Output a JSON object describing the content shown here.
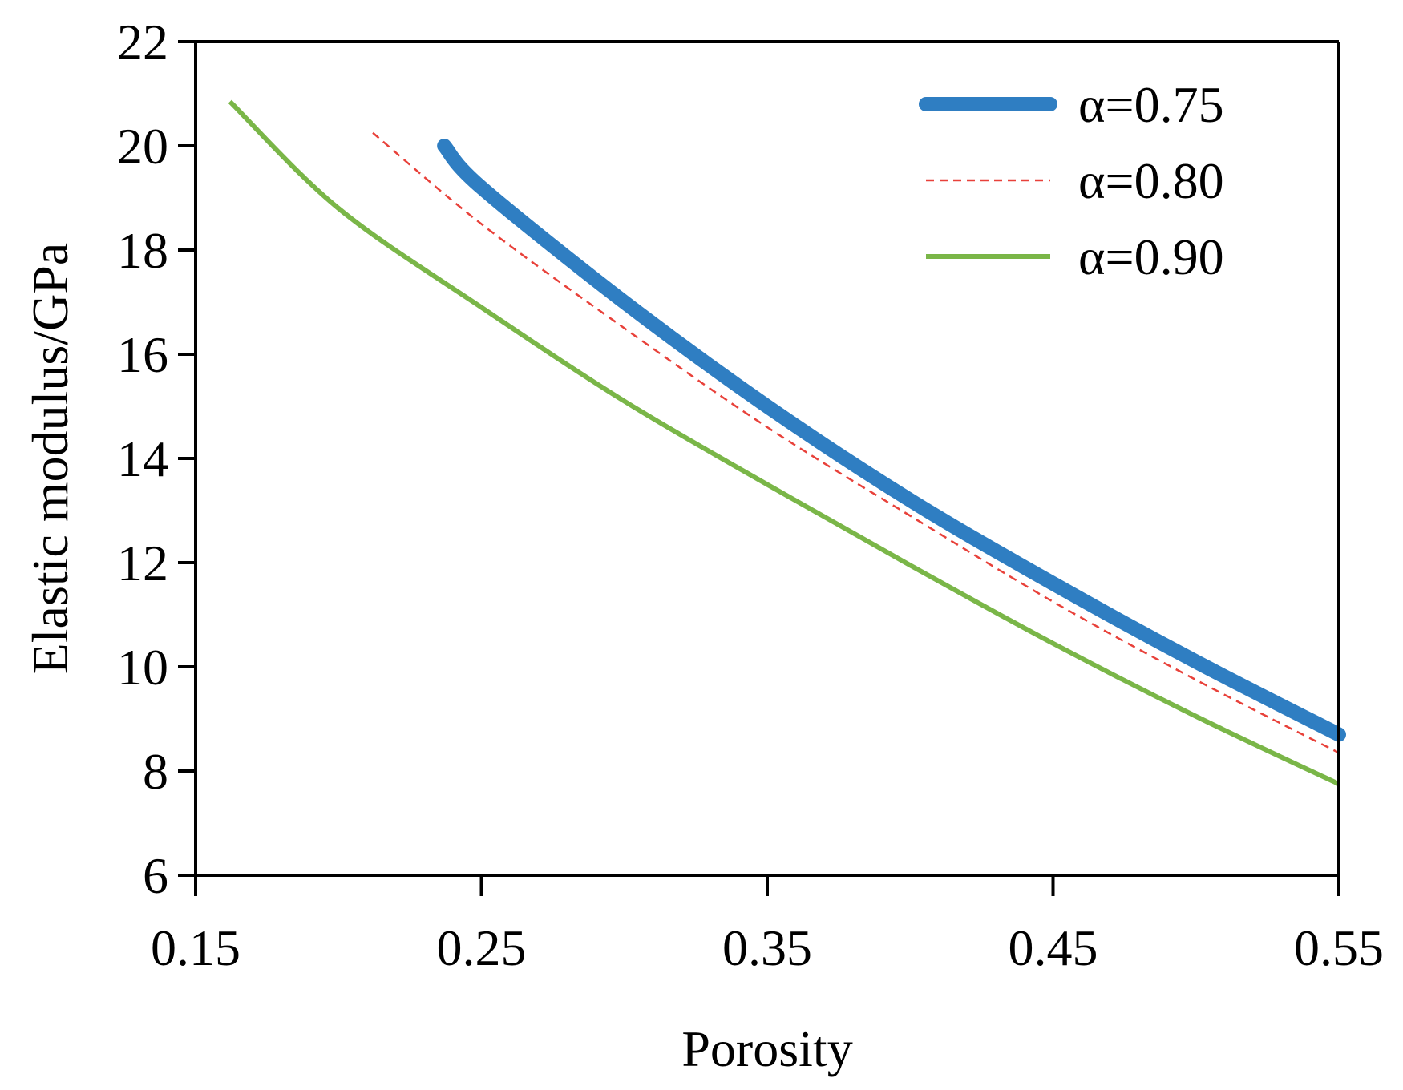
{
  "chart_data": {
    "type": "line",
    "title": "",
    "xlabel": "Porosity",
    "ylabel": "Elastic modulus/GPa",
    "xlim": [
      0.15,
      0.55
    ],
    "ylim": [
      6,
      22
    ],
    "xticks": [
      0.15,
      0.25,
      0.35,
      0.45,
      0.55
    ],
    "xtick_labels": [
      "0.15",
      "0.25",
      "0.35",
      "0.45",
      "0.55"
    ],
    "yticks": [
      6,
      8,
      10,
      12,
      14,
      16,
      18,
      20,
      22
    ],
    "ytick_labels": [
      "6",
      "8",
      "10",
      "12",
      "14",
      "16",
      "18",
      "20",
      "22"
    ],
    "grid": false,
    "legend_position": "top-right",
    "series": [
      {
        "name": "α=0.75",
        "color": "#2f7ec2",
        "style": "thick-solid",
        "x": [
          0.237,
          0.25,
          0.3,
          0.35,
          0.4,
          0.45,
          0.5,
          0.55
        ],
        "y": [
          20.0,
          19.2,
          17.0,
          15.0,
          13.2,
          11.6,
          10.1,
          8.7
        ]
      },
      {
        "name": "α=0.80",
        "color": "#e8413a",
        "style": "dashed",
        "x": [
          0.212,
          0.25,
          0.3,
          0.35,
          0.4,
          0.45,
          0.5,
          0.55
        ],
        "y": [
          20.25,
          18.5,
          16.5,
          14.6,
          12.9,
          11.25,
          9.75,
          8.35
        ]
      },
      {
        "name": "α=0.90",
        "color": "#7ab648",
        "style": "solid",
        "x": [
          0.162,
          0.2,
          0.25,
          0.3,
          0.35,
          0.4,
          0.45,
          0.5,
          0.55
        ],
        "y": [
          20.85,
          18.8,
          16.9,
          15.1,
          13.5,
          11.95,
          10.45,
          9.05,
          7.75
        ]
      }
    ]
  }
}
